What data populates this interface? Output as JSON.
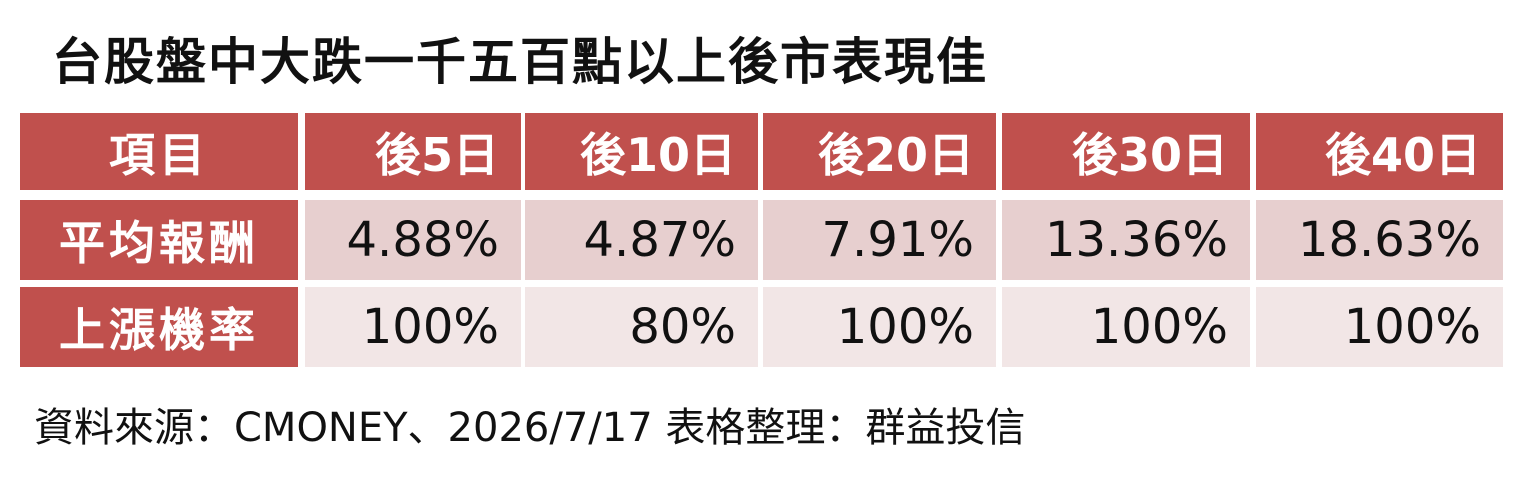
{
  "title": "台股盤中大跌一千五百點以上後市表現佳",
  "table": {
    "header": [
      "項目",
      "後5日",
      "後10日",
      "後20日",
      "後30日",
      "後40日"
    ],
    "rows": [
      [
        "平均報酬",
        "4.88%",
        "4.87%",
        "7.91%",
        "13.36%",
        "18.63%"
      ],
      [
        "上漲機率",
        "100%",
        "80%",
        "100%",
        "100%",
        "100%"
      ]
    ]
  },
  "source": "資料來源：CMONEY、2026/7/17 表格整理：群益投信"
}
